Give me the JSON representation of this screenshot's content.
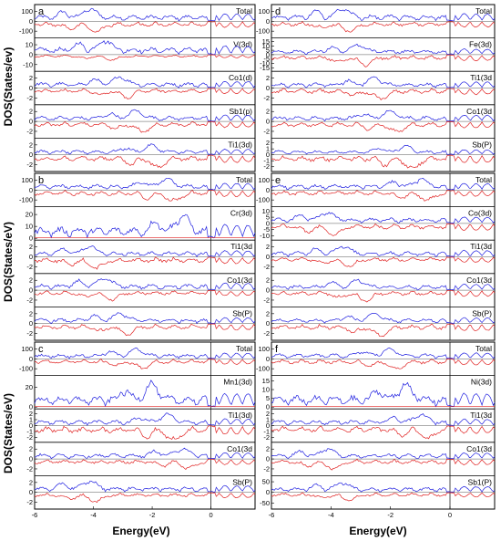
{
  "figure": {
    "ylabel": "DOS(States/eV)",
    "ylabel_a": "DOS(States/ev)",
    "xlabel": "Energy(eV)",
    "xticks": [
      "-6",
      "-4",
      "-2",
      "0"
    ]
  },
  "colors": {
    "spin_up": "#1f1fe0",
    "spin_down": "#e02020",
    "axis": "#000000"
  },
  "chart_data": [
    {
      "type": "line",
      "panel": "a",
      "xlim": [
        -6,
        1.5
      ],
      "subplots": [
        {
          "label": "Total",
          "yticks": [
            "100",
            "0",
            "-100"
          ],
          "ylim": [
            -150,
            150
          ],
          "spin": "both",
          "peak_up": 130,
          "peak_dn": -110
        },
        {
          "label": "V(3d)",
          "yticks": [
            "10",
            "0",
            "-10"
          ],
          "ylim": [
            -15,
            15
          ],
          "spin": "both",
          "peak_up": 14,
          "peak_dn": -6
        },
        {
          "label": "Co1(d)",
          "yticks": [
            "2",
            "0",
            "-2"
          ],
          "ylim": [
            -3,
            3
          ],
          "spin": "both",
          "peak_up": 2.3,
          "peak_dn": -2.2
        },
        {
          "label": "Sb1(p)",
          "yticks": [
            "2",
            "0",
            "-2"
          ],
          "ylim": [
            -3,
            3
          ],
          "spin": "both",
          "peak_up": 2.4,
          "peak_dn": -2.2
        },
        {
          "label": "Ti1(3d)",
          "yticks": [
            "2",
            "0",
            "-2"
          ],
          "ylim": [
            -3,
            3
          ],
          "spin": "both",
          "peak_up": 2.2,
          "peak_dn": -2.6
        }
      ]
    },
    {
      "type": "line",
      "panel": "b",
      "xlim": [
        -6,
        1.5
      ],
      "subplots": [
        {
          "label": "Total",
          "yticks": [
            "100",
            "0",
            "-100"
          ],
          "ylim": [
            -150,
            150
          ],
          "spin": "both",
          "peak_up": 120,
          "peak_dn": -110
        },
        {
          "label": "Cr(3d)",
          "yticks": [
            "20",
            "10",
            "0"
          ],
          "ylim": [
            0,
            25
          ],
          "spin": "up",
          "peak_up": 20,
          "peak_dn": 0
        },
        {
          "label": "Ti1(3d",
          "yticks": [
            "2",
            "0",
            "-2"
          ],
          "ylim": [
            -3,
            3
          ],
          "spin": "both",
          "peak_up": 2.2,
          "peak_dn": -2.5
        },
        {
          "label": "Co1(3d",
          "yticks": [
            "2",
            "0",
            "-2"
          ],
          "ylim": [
            -3,
            3
          ],
          "spin": "both",
          "peak_up": 2.3,
          "peak_dn": -2.2
        },
        {
          "label": "Sb(P)",
          "yticks": [
            "2",
            "0",
            "-2"
          ],
          "ylim": [
            -3,
            3
          ],
          "spin": "both",
          "peak_up": 2.2,
          "peak_dn": -2.4
        }
      ]
    },
    {
      "type": "line",
      "panel": "c",
      "xlim": [
        -6,
        1.5
      ],
      "subplots": [
        {
          "label": "Total",
          "yticks": [
            "100",
            "0",
            "-100"
          ],
          "ylim": [
            -150,
            150
          ],
          "spin": "both",
          "peak_up": 110,
          "peak_dn": -100
        },
        {
          "label": "Mn1(3d)",
          "yticks": [
            "20",
            "0"
          ],
          "ylim": [
            0,
            30
          ],
          "spin": "up",
          "peak_up": 27,
          "peak_dn": 0
        },
        {
          "label": "Ti1(3d)",
          "yticks": [
            "2",
            "1",
            "0",
            "-1",
            "-2"
          ],
          "ylim": [
            -2.5,
            2.5
          ],
          "spin": "both",
          "peak_up": 2.1,
          "peak_dn": -2.3
        },
        {
          "label": "Co1(3d",
          "yticks": [
            "2",
            "0",
            "-2"
          ],
          "ylim": [
            -3,
            3
          ],
          "spin": "both",
          "peak_up": 2.2,
          "peak_dn": -2.1
        },
        {
          "label": "Sb(P)",
          "yticks": [
            "2",
            "0",
            "-2"
          ],
          "ylim": [
            -3,
            3
          ],
          "spin": "both",
          "peak_up": 2.3,
          "peak_dn": -2.0
        }
      ]
    },
    {
      "type": "line",
      "panel": "d",
      "xlim": [
        -6,
        1.5
      ],
      "subplots": [
        {
          "label": "Total",
          "yticks": [
            "100",
            "0",
            "-100"
          ],
          "ylim": [
            -150,
            150
          ],
          "spin": "both",
          "peak_up": 120,
          "peak_dn": -110
        },
        {
          "label": "Fe(3d)",
          "yticks": [
            "15",
            "10",
            "5",
            "0",
            "-5",
            "-10",
            "-15"
          ],
          "ylim": [
            -17,
            17
          ],
          "spin": "both",
          "peak_up": 12,
          "peak_dn": -14
        },
        {
          "label": "Ti1(3d",
          "yticks": [
            "2",
            "0",
            "-2"
          ],
          "ylim": [
            -3,
            3
          ],
          "spin": "both",
          "peak_up": 2.3,
          "peak_dn": -2.4
        },
        {
          "label": "Co1(3d",
          "yticks": [
            "2",
            "0",
            "-2"
          ],
          "ylim": [
            -3,
            3
          ],
          "spin": "both",
          "peak_up": 2.2,
          "peak_dn": -2.1
        },
        {
          "label": "Sb(P)",
          "yticks": [
            "2",
            "1",
            "0",
            "-1",
            "-2"
          ],
          "ylim": [
            -2.5,
            2.5
          ],
          "spin": "both",
          "peak_up": 1.6,
          "peak_dn": -2.2
        }
      ]
    },
    {
      "type": "line",
      "panel": "e",
      "xlim": [
        -6,
        1.5
      ],
      "subplots": [
        {
          "label": "Total",
          "yticks": [
            "100",
            "0",
            "-100"
          ],
          "ylim": [
            -150,
            150
          ],
          "spin": "both",
          "peak_up": 120,
          "peak_dn": -110
        },
        {
          "label": "Co(3d)",
          "yticks": [
            "10",
            "5",
            "0",
            "-5",
            "-10"
          ],
          "ylim": [
            -12,
            12
          ],
          "spin": "both",
          "peak_up": 9,
          "peak_dn": -10
        },
        {
          "label": "Ti1(3d",
          "yticks": [
            "2",
            "0",
            "-2"
          ],
          "ylim": [
            -3,
            3
          ],
          "spin": "both",
          "peak_up": 2.1,
          "peak_dn": -2.0
        },
        {
          "label": "Co1(3d",
          "yticks": [
            "2",
            "0",
            "-2"
          ],
          "ylim": [
            -3,
            3
          ],
          "spin": "both",
          "peak_up": 2.2,
          "peak_dn": -2.4
        },
        {
          "label": "Sb(P)",
          "yticks": [
            "2",
            "0",
            "-2"
          ],
          "ylim": [
            -3,
            3
          ],
          "spin": "both",
          "peak_up": 2.1,
          "peak_dn": -2.6
        }
      ]
    },
    {
      "type": "line",
      "panel": "f",
      "xlim": [
        -6,
        1.5
      ],
      "subplots": [
        {
          "label": "Total",
          "yticks": [
            "100",
            "0",
            "-100"
          ],
          "ylim": [
            -150,
            150
          ],
          "spin": "both",
          "peak_up": 110,
          "peak_dn": -100
        },
        {
          "label": "Ni(3d)",
          "yticks": [
            "15",
            "10",
            "5",
            "0"
          ],
          "ylim": [
            0,
            17
          ],
          "spin": "up",
          "peak_up": 14,
          "peak_dn": 0
        },
        {
          "label": "Ti1(3d",
          "yticks": [
            "2",
            "1",
            "0",
            "-1",
            "-2"
          ],
          "ylim": [
            -2.5,
            2.5
          ],
          "spin": "both",
          "peak_up": 2.0,
          "peak_dn": -2.2
        },
        {
          "label": "Co1(3d",
          "yticks": [
            "2",
            "0",
            "-2"
          ],
          "ylim": [
            -3,
            3
          ],
          "spin": "both",
          "peak_up": 2.1,
          "peak_dn": -2.2
        },
        {
          "label": "Sb1(P)",
          "yticks": [
            "50",
            "0",
            "-50"
          ],
          "ylim": [
            -70,
            70
          ],
          "spin": "both",
          "peak_up": 45,
          "peak_dn": -40
        }
      ]
    }
  ]
}
